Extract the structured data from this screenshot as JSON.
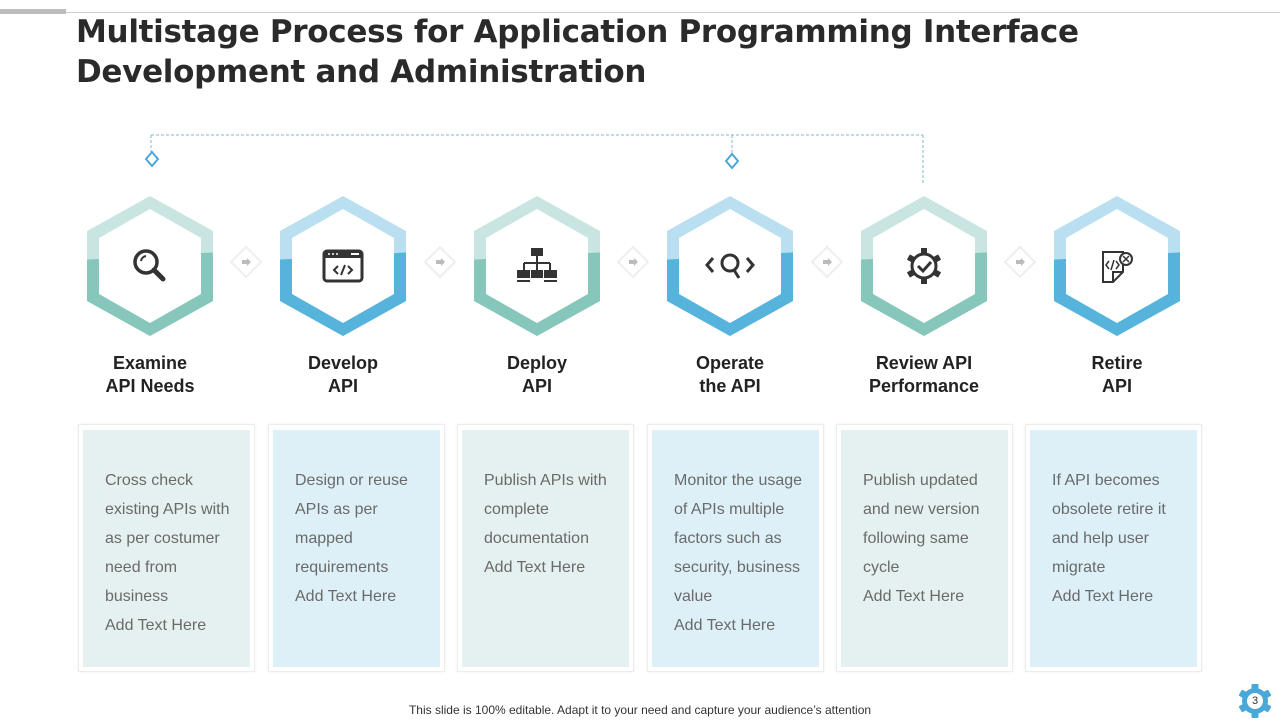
{
  "title": "Multistage Process for Application Programming Interface Development and Administration",
  "colors": {
    "green_light": "#c9e5e1",
    "green_dark": "#86c6bb",
    "blue_light": "#b9dff0",
    "blue_dark": "#55b3dc",
    "card_green": "#e5f1f0",
    "card_blue": "#ddf0f7"
  },
  "steps": [
    {
      "label": "Examine\nAPI Needs",
      "icon": "magnifier-icon",
      "text": "Cross check\nexisting APIs with\nas per costumer\nneed from\nbusiness\nAdd Text Here"
    },
    {
      "label": "Develop\nAPI",
      "icon": "code-window-icon",
      "text": "Design or reuse\nAPIs as per\nmapped\nrequirements\nAdd Text Here"
    },
    {
      "label": "Deploy\nAPI",
      "icon": "network-hierarchy-icon",
      "text": "Publish APIs with\ncomplete\ndocumentation\nAdd Text Here"
    },
    {
      "label": "Operate\nthe API",
      "icon": "code-search-icon",
      "text": "Monitor the usage\nof APIs multiple\nfactors such as\nsecurity, business\nvalue\nAdd Text Here"
    },
    {
      "label": "Review API\nPerformance",
      "icon": "gear-check-icon",
      "text": "Publish updated\nand new version\nfollowing same\ncycle\nAdd Text Here"
    },
    {
      "label": "Retire\nAPI",
      "icon": "code-file-remove-icon",
      "text": "If API becomes\nobsolete retire it\nand help user\nmigrate\nAdd Text Here"
    }
  ],
  "footer": "This slide is 100% editable. Adapt it to your need and capture your audience’s attention",
  "page_number": "3"
}
